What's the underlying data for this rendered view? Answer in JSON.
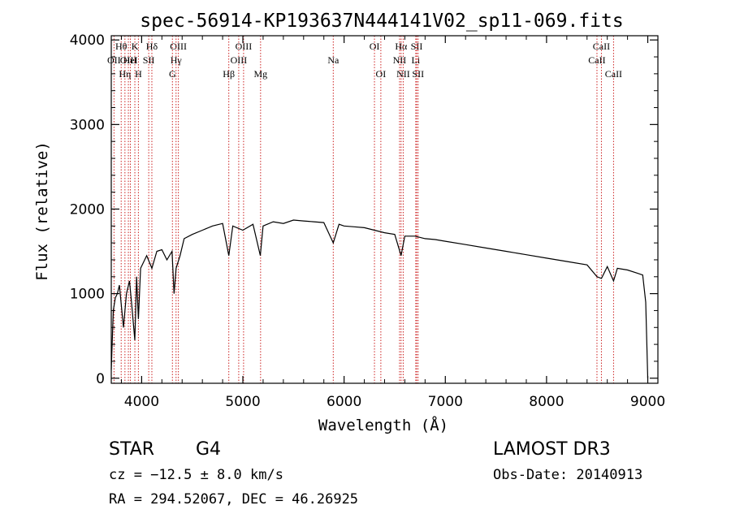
{
  "chart_data": {
    "type": "line",
    "title": "spec-56914-KP193637N444141V02_sp11-069.fits",
    "xlabel": "Wavelength (Å)",
    "ylabel": "Flux (relative)",
    "xlim": [
      3700,
      9100
    ],
    "ylim": [
      -60,
      4050
    ],
    "x_ticks": [
      4000,
      5000,
      6000,
      7000,
      8000,
      9000
    ],
    "y_ticks": [
      0,
      1000,
      2000,
      3000,
      4000
    ],
    "series": [
      {
        "name": "flux",
        "x": [
          3700,
          3720,
          3740,
          3760,
          3780,
          3800,
          3820,
          3850,
          3880,
          3900,
          3933,
          3950,
          3968,
          3990,
          4010,
          4050,
          4101,
          4150,
          4200,
          4250,
          4300,
          4320,
          4340,
          4380,
          4420,
          4500,
          4600,
          4700,
          4800,
          4861,
          4900,
          5000,
          5100,
          5172,
          5200,
          5300,
          5400,
          5500,
          5600,
          5700,
          5800,
          5893,
          5950,
          6000,
          6100,
          6200,
          6300,
          6400,
          6500,
          6563,
          6600,
          6700,
          6800,
          6900,
          7000,
          7200,
          7400,
          7600,
          7800,
          8000,
          8200,
          8400,
          8498,
          8542,
          8600,
          8662,
          8700,
          8800,
          8900,
          8950,
          8980,
          9000
        ],
        "values": [
          100,
          800,
          950,
          1000,
          1100,
          850,
          600,
          1000,
          1150,
          900,
          450,
          1200,
          700,
          1300,
          1350,
          1450,
          1300,
          1500,
          1520,
          1400,
          1500,
          1000,
          1300,
          1450,
          1650,
          1700,
          1750,
          1800,
          1830,
          1450,
          1800,
          1750,
          1820,
          1450,
          1800,
          1850,
          1830,
          1870,
          1860,
          1850,
          1840,
          1600,
          1820,
          1800,
          1790,
          1780,
          1750,
          1720,
          1700,
          1450,
          1680,
          1680,
          1650,
          1640,
          1620,
          1580,
          1540,
          1500,
          1460,
          1420,
          1380,
          1340,
          1200,
          1180,
          1320,
          1150,
          1300,
          1280,
          1240,
          1220,
          900,
          0
        ]
      }
    ],
    "spectral_lines": [
      {
        "label": "OII",
        "wavelength": 3727,
        "row": 2
      },
      {
        "label": "Hθ",
        "wavelength": 3798,
        "row": 1
      },
      {
        "label": "OIII",
        "wavelength": 3869,
        "row": 2
      },
      {
        "label": "K",
        "wavelength": 3933,
        "row": 1
      },
      {
        "label": "HeI",
        "wavelength": 3889,
        "row": 2
      },
      {
        "label": "Hη",
        "wavelength": 3835,
        "row": 3
      },
      {
        "label": "H",
        "wavelength": 3968,
        "row": 3
      },
      {
        "label": "SII",
        "wavelength": 4070,
        "row": 2
      },
      {
        "label": "Hδ",
        "wavelength": 4101,
        "row": 1
      },
      {
        "label": "OIII",
        "wavelength": 4363,
        "row": 1
      },
      {
        "label": "Hγ",
        "wavelength": 4340,
        "row": 2
      },
      {
        "label": "G",
        "wavelength": 4304,
        "row": 3
      },
      {
        "label": "Hβ",
        "wavelength": 4861,
        "row": 3
      },
      {
        "label": "OIII",
        "wavelength": 5007,
        "row": 1
      },
      {
        "label": "OIII",
        "wavelength": 4959,
        "row": 2
      },
      {
        "label": "Mg",
        "wavelength": 5175,
        "row": 3
      },
      {
        "label": "Na",
        "wavelength": 5893,
        "row": 2
      },
      {
        "label": "OI",
        "wavelength": 6300,
        "row": 1
      },
      {
        "label": "OI",
        "wavelength": 6363,
        "row": 3
      },
      {
        "label": "Hα",
        "wavelength": 6563,
        "row": 1
      },
      {
        "label": "NII",
        "wavelength": 6548,
        "row": 2
      },
      {
        "label": "NII",
        "wavelength": 6584,
        "row": 3
      },
      {
        "label": "SII",
        "wavelength": 6717,
        "row": 1
      },
      {
        "label": "Li",
        "wavelength": 6708,
        "row": 2
      },
      {
        "label": "SII",
        "wavelength": 6731,
        "row": 3
      },
      {
        "label": "CaII",
        "wavelength": 8542,
        "row": 1
      },
      {
        "label": "CaII",
        "wavelength": 8498,
        "row": 2
      },
      {
        "label": "CaII",
        "wavelength": 8662,
        "row": 3
      }
    ]
  },
  "info": {
    "object_class": "STAR",
    "subclass": "G4",
    "survey": "LAMOST DR3",
    "redshift": "cz = −12.5 ± 8.0 km/s",
    "obs_date": "Obs-Date: 20140913",
    "coordinates": "RA = 294.52067, DEC =  46.26925"
  },
  "colors": {
    "line_marker": "#cc2222",
    "spectrum": "#000000",
    "axes": "#000000"
  }
}
